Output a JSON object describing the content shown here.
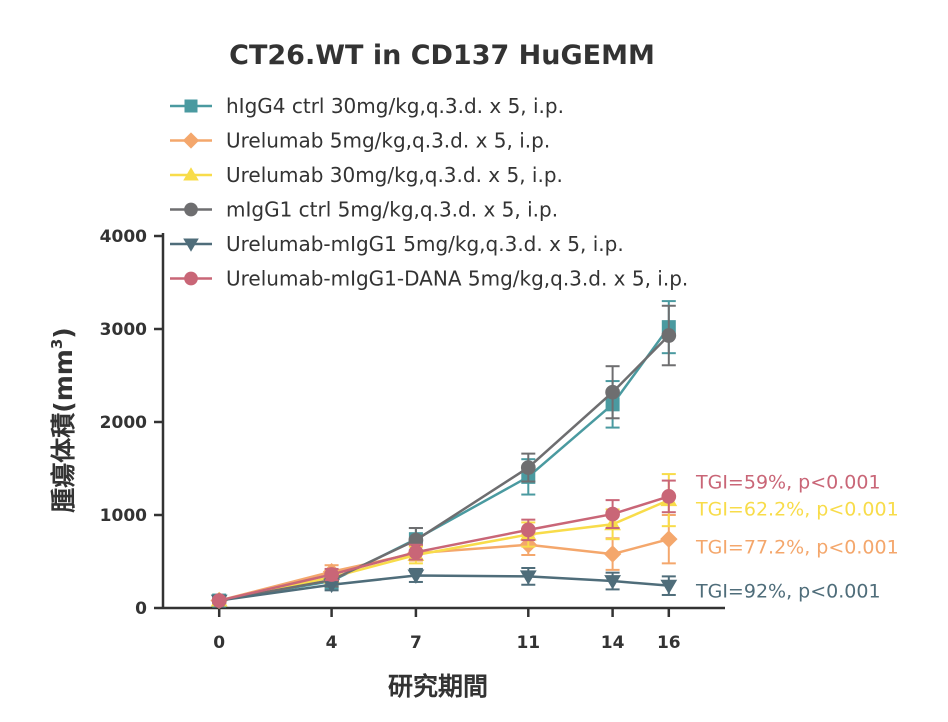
{
  "chart_data": {
    "type": "line",
    "title": "CT26.WT in CD137 HuGEMM",
    "xlabel": "研究期間",
    "ylabel_main": "腫瘍体積(mm",
    "ylabel_sup": "3",
    "ylabel_end": ")",
    "x": [
      0,
      4,
      7,
      11,
      14,
      16
    ],
    "x_ticks": [
      "0",
      "4",
      "7",
      "11",
      "14",
      "16"
    ],
    "y_ticks": [
      "0",
      "1000",
      "2000",
      "3000",
      "4000"
    ],
    "y_tick_values": [
      0,
      1000,
      2000,
      3000,
      4000
    ],
    "xlim": [
      -2,
      18
    ],
    "ylim": [
      0,
      4000
    ],
    "grid": false,
    "legend_position": "top-left",
    "series": [
      {
        "name": "hIgG4 ctrl 30mg/kg,q.3.d. x 5, i.p.",
        "color": "#4a9aa0",
        "marker": "square",
        "values": [
          80,
          290,
          740,
          1410,
          2190,
          3020
        ],
        "errors": [
          20,
          80,
          120,
          190,
          250,
          280
        ]
      },
      {
        "name": "Urelumab 5mg/kg,q.3.d. x 5, i.p.",
        "color": "#f4a76c",
        "marker": "diamond",
        "values": [
          80,
          390,
          590,
          680,
          580,
          740
        ],
        "errors": [
          20,
          70,
          80,
          110,
          170,
          260
        ]
      },
      {
        "name": "Urelumab 30mg/kg,q.3.d. x 5, i.p.",
        "color": "#f8dc4a",
        "marker": "triangle-up",
        "values": [
          80,
          330,
          570,
          790,
          900,
          1160
        ],
        "errors": [
          20,
          60,
          90,
          130,
          160,
          280
        ]
      },
      {
        "name": "mIgG1 ctrl 5mg/kg,q.3.d. x 5, i.p.",
        "color": "#6e6e70",
        "marker": "circle",
        "values": [
          80,
          300,
          730,
          1510,
          2320,
          2930
        ],
        "errors": [
          20,
          70,
          130,
          150,
          280,
          320
        ]
      },
      {
        "name": "Urelumab-mIgG1 5mg/kg,q.3.d. x 5, i.p.",
        "color": "#4f6d7a",
        "marker": "triangle-down",
        "values": [
          80,
          250,
          350,
          340,
          290,
          240
        ],
        "errors": [
          20,
          60,
          70,
          90,
          90,
          100
        ]
      },
      {
        "name": "Urelumab-mIgG1-DANA 5mg/kg,q.3.d. x 5, i.p.",
        "color": "#c96677",
        "marker": "circle",
        "values": [
          80,
          360,
          600,
          840,
          1010,
          1200
        ],
        "errors": [
          20,
          60,
          80,
          110,
          150,
          170
        ]
      }
    ],
    "annotations": [
      {
        "text": "TGI=59%, p<0.001",
        "color": "#c96677",
        "y": 1360
      },
      {
        "text": "TGI=62.2%, p<0.001",
        "color": "#f8dc4a",
        "y": 1070
      },
      {
        "text": "TGI=77.2%, p<0.001",
        "color": "#f4a76c",
        "y": 660
      },
      {
        "text": "TGI=92%, p<0.001",
        "color": "#4f6d7a",
        "y": 190
      }
    ]
  }
}
